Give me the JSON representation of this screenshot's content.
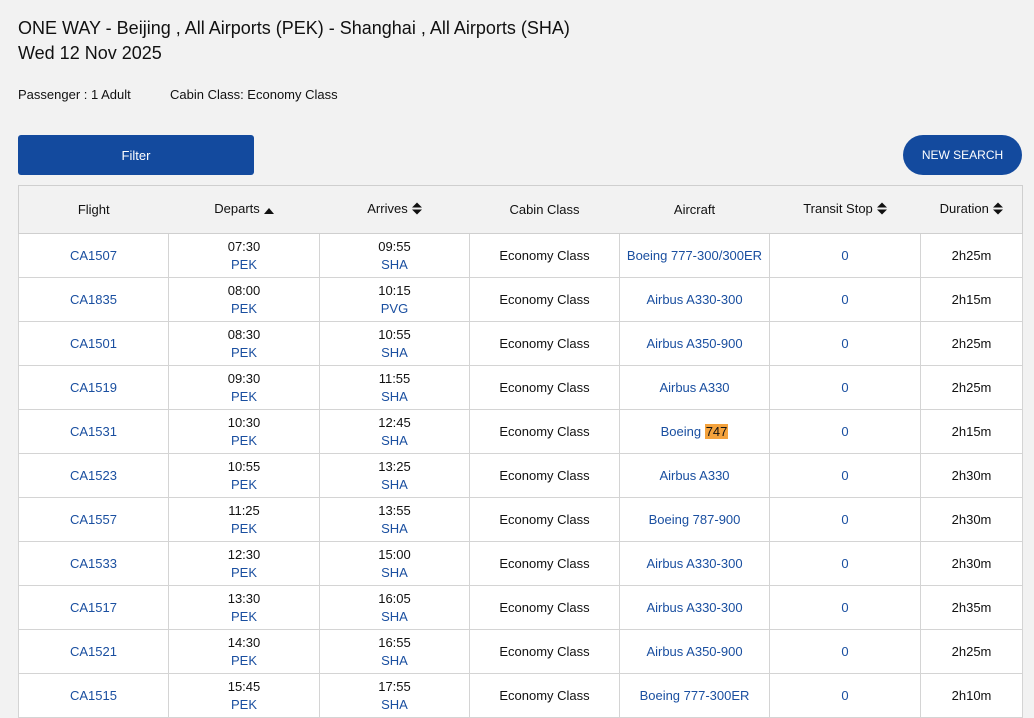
{
  "header": {
    "route": "ONE WAY - Beijing , All Airports (PEK) - Shanghai , All Airports (SHA)",
    "date": "Wed 12 Nov 2025",
    "passenger": "Passenger : 1 Adult",
    "cabin_class": "Cabin Class: Economy Class"
  },
  "toolbar": {
    "filter_label": "Filter",
    "new_search_label": "NEW SEARCH"
  },
  "table": {
    "columns": {
      "flight": "Flight",
      "departs": "Departs",
      "arrives": "Arrives",
      "cabin": "Cabin Class",
      "aircraft": "Aircraft",
      "transit": "Transit Stop",
      "duration": "Duration"
    },
    "highlight_color": "#f4a23c",
    "rows": [
      {
        "flight": "CA1507",
        "dep_time": "07:30",
        "dep_code": "PEK",
        "arr_time": "09:55",
        "arr_code": "SHA",
        "cabin": "Economy Class",
        "aircraft": "Boeing 777-300/300ER",
        "aircraft_hl": "",
        "transit": "0",
        "duration": "2h25m"
      },
      {
        "flight": "CA1835",
        "dep_time": "08:00",
        "dep_code": "PEK",
        "arr_time": "10:15",
        "arr_code": "PVG",
        "cabin": "Economy Class",
        "aircraft": "Airbus A330-300",
        "aircraft_hl": "",
        "transit": "0",
        "duration": "2h15m"
      },
      {
        "flight": "CA1501",
        "dep_time": "08:30",
        "dep_code": "PEK",
        "arr_time": "10:55",
        "arr_code": "SHA",
        "cabin": "Economy Class",
        "aircraft": "Airbus A350-900",
        "aircraft_hl": "",
        "transit": "0",
        "duration": "2h25m"
      },
      {
        "flight": "CA1519",
        "dep_time": "09:30",
        "dep_code": "PEK",
        "arr_time": "11:55",
        "arr_code": "SHA",
        "cabin": "Economy Class",
        "aircraft": "Airbus A330",
        "aircraft_hl": "",
        "transit": "0",
        "duration": "2h25m"
      },
      {
        "flight": "CA1531",
        "dep_time": "10:30",
        "dep_code": "PEK",
        "arr_time": "12:45",
        "arr_code": "SHA",
        "cabin": "Economy Class",
        "aircraft": "Boeing ",
        "aircraft_hl": "747",
        "transit": "0",
        "duration": "2h15m"
      },
      {
        "flight": "CA1523",
        "dep_time": "10:55",
        "dep_code": "PEK",
        "arr_time": "13:25",
        "arr_code": "SHA",
        "cabin": "Economy Class",
        "aircraft": "Airbus A330",
        "aircraft_hl": "",
        "transit": "0",
        "duration": "2h30m"
      },
      {
        "flight": "CA1557",
        "dep_time": "11:25",
        "dep_code": "PEK",
        "arr_time": "13:55",
        "arr_code": "SHA",
        "cabin": "Economy Class",
        "aircraft": "Boeing 787-900",
        "aircraft_hl": "",
        "transit": "0",
        "duration": "2h30m"
      },
      {
        "flight": "CA1533",
        "dep_time": "12:30",
        "dep_code": "PEK",
        "arr_time": "15:00",
        "arr_code": "SHA",
        "cabin": "Economy Class",
        "aircraft": "Airbus A330-300",
        "aircraft_hl": "",
        "transit": "0",
        "duration": "2h30m"
      },
      {
        "flight": "CA1517",
        "dep_time": "13:30",
        "dep_code": "PEK",
        "arr_time": "16:05",
        "arr_code": "SHA",
        "cabin": "Economy Class",
        "aircraft": "Airbus A330-300",
        "aircraft_hl": "",
        "transit": "0",
        "duration": "2h35m"
      },
      {
        "flight": "CA1521",
        "dep_time": "14:30",
        "dep_code": "PEK",
        "arr_time": "16:55",
        "arr_code": "SHA",
        "cabin": "Economy Class",
        "aircraft": "Airbus A350-900",
        "aircraft_hl": "",
        "transit": "0",
        "duration": "2h25m"
      },
      {
        "flight": "CA1515",
        "dep_time": "15:45",
        "dep_code": "PEK",
        "arr_time": "17:55",
        "arr_code": "SHA",
        "cabin": "Economy Class",
        "aircraft": "Boeing 777-300ER",
        "aircraft_hl": "",
        "transit": "0",
        "duration": "2h10m"
      }
    ]
  }
}
